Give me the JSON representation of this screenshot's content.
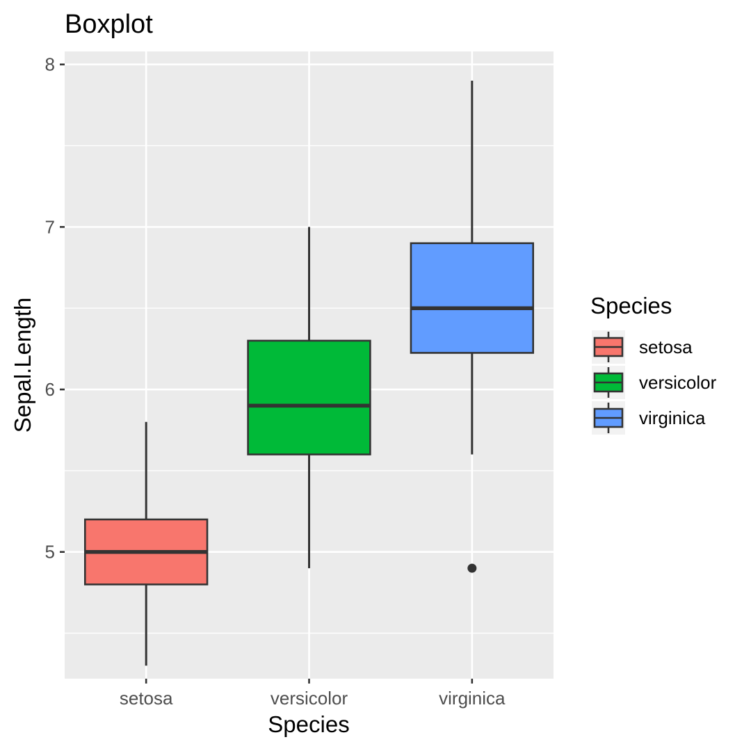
{
  "chart_data": {
    "type": "boxplot",
    "title": "Boxplot",
    "xlabel": "Species",
    "ylabel": "Sepal.Length",
    "ylim": [
      4.22,
      8.08
    ],
    "yticks": [
      5,
      6,
      7,
      8
    ],
    "ytick_labels": [
      "5",
      "6",
      "7",
      "8"
    ],
    "yminor": [
      4.5,
      5.5,
      6.5,
      7.5
    ],
    "grid": true,
    "legend": {
      "title": "Species",
      "position": "right"
    },
    "categories": [
      "setosa",
      "versicolor",
      "virginica"
    ],
    "series": [
      {
        "name": "setosa",
        "color": "#F8766D",
        "whisker_low": 4.3,
        "q1": 4.8,
        "median": 5.0,
        "q3": 5.2,
        "whisker_high": 5.8,
        "outliers": []
      },
      {
        "name": "versicolor",
        "color": "#00BA38",
        "whisker_low": 4.9,
        "q1": 5.6,
        "median": 5.9,
        "q3": 6.3,
        "whisker_high": 7.0,
        "outliers": []
      },
      {
        "name": "virginica",
        "color": "#619CFF",
        "whisker_low": 5.6,
        "q1": 6.225,
        "median": 6.5,
        "q3": 6.9,
        "whisker_high": 7.9,
        "outliers": [
          4.9
        ]
      }
    ]
  }
}
